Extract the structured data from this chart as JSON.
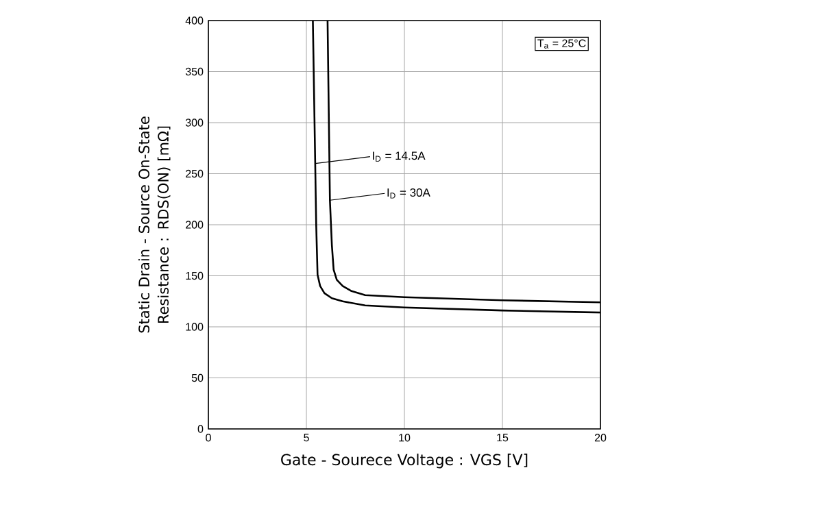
{
  "chart_data": {
    "type": "line",
    "xlabel": "Gate - Sourece Voltage : VGS  [V]",
    "ylabel": "Static Drain - Source On-State Resistance : RDS(ON)  [mΩ]",
    "xlim": [
      0,
      20
    ],
    "ylim": [
      0,
      400
    ],
    "xticks": [
      0,
      5,
      10,
      15,
      20
    ],
    "yticks": [
      0,
      50,
      100,
      150,
      200,
      250,
      300,
      350,
      400
    ],
    "grid": true,
    "series": [
      {
        "color": "#000000",
        "x": [
          5.33,
          5.45,
          5.5,
          5.57,
          5.7,
          5.92,
          6.3,
          6.85,
          8,
          10,
          15,
          20
        ],
        "values": [
          400,
          260,
          200,
          151,
          140,
          133,
          128,
          125,
          121,
          119,
          116,
          114
        ]
      },
      {
        "color": "#000000",
        "x": [
          6.08,
          6.2,
          6.3,
          6.39,
          6.55,
          6.85,
          7.3,
          8,
          10,
          15,
          20
        ],
        "values": [
          400,
          224,
          180,
          156,
          146,
          140,
          135,
          131,
          129,
          126,
          124
        ]
      }
    ],
    "annotations": [
      {
        "text": "I$_{D}$ = 14.5A",
        "x": 5.45,
        "y": 260
      },
      {
        "text": "I$_{D}$ = 30A",
        "x": 6.2,
        "y": 224
      },
      "T$_{a}$ = 25°C"
    ]
  }
}
